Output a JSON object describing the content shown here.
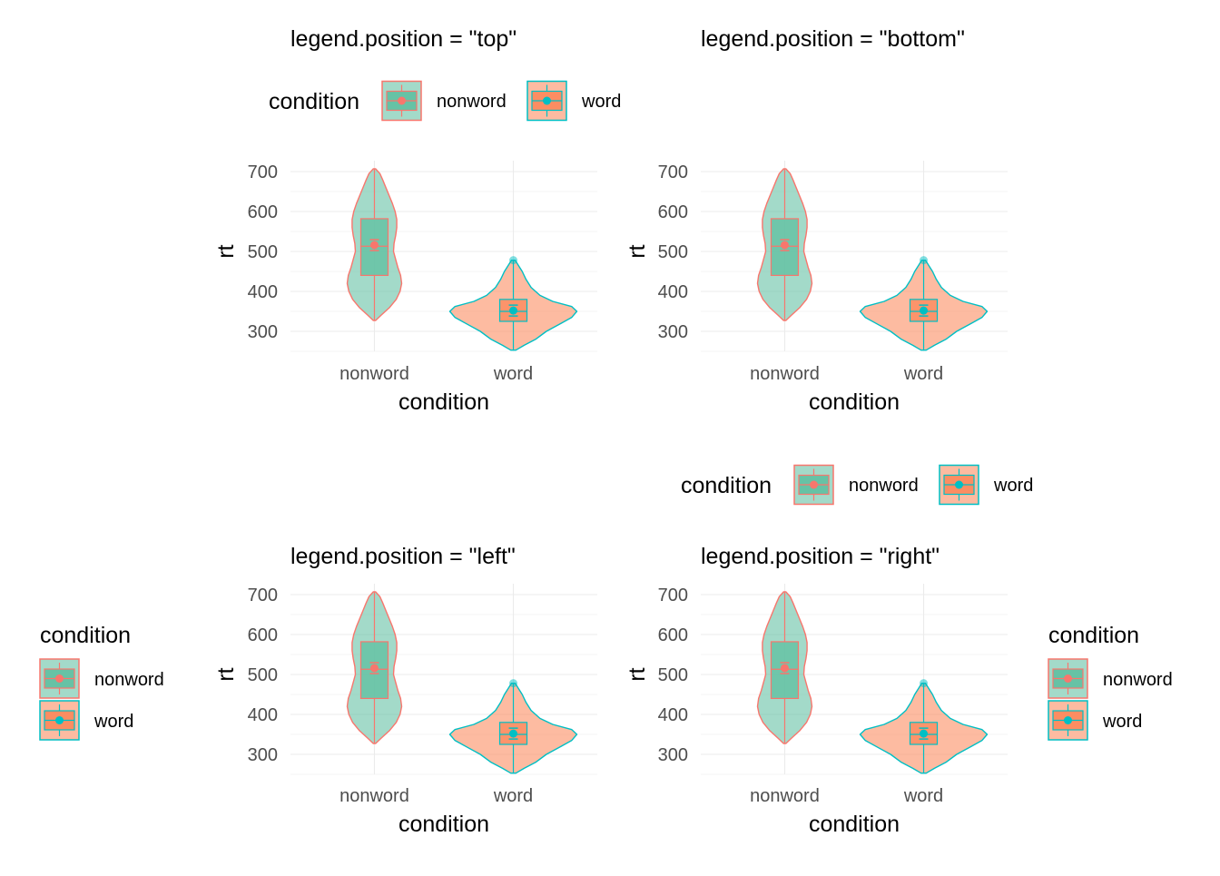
{
  "colors": {
    "nonword_line": "#F8766D",
    "word_line": "#00BFC4",
    "nonword_fill": "#66C2A5",
    "word_fill": "#FC8D62",
    "grid": "#EBEBEB",
    "tick_text": "#4D4D4D",
    "text": "#000000"
  },
  "legend": {
    "title": "condition",
    "items": [
      "nonword",
      "word"
    ]
  },
  "chart_data": [
    {
      "type": "violin",
      "title": "legend.position = \"top\"",
      "legend_position": "top",
      "xlabel": "condition",
      "ylabel": "rt",
      "categories": [
        "nonword",
        "word"
      ],
      "yticks": [
        300,
        400,
        500,
        600,
        700
      ],
      "ylim": [
        245,
        720
      ],
      "grid": true,
      "series": [
        {
          "category": "nonword",
          "min": 327,
          "q1": 440,
          "median": 513,
          "q3": 582,
          "max": 707,
          "mean": 516
        },
        {
          "category": "word",
          "min": 253,
          "q1": 325,
          "median": 350,
          "q3": 380,
          "max": 478,
          "mean": 352
        }
      ]
    },
    {
      "type": "violin",
      "title": "legend.position = \"bottom\"",
      "legend_position": "bottom",
      "xlabel": "condition",
      "ylabel": "rt",
      "categories": [
        "nonword",
        "word"
      ],
      "yticks": [
        300,
        400,
        500,
        600,
        700
      ],
      "ylim": [
        245,
        720
      ],
      "grid": true,
      "series": [
        {
          "category": "nonword",
          "min": 327,
          "q1": 440,
          "median": 513,
          "q3": 582,
          "max": 707,
          "mean": 516
        },
        {
          "category": "word",
          "min": 253,
          "q1": 325,
          "median": 350,
          "q3": 380,
          "max": 478,
          "mean": 352
        }
      ]
    },
    {
      "type": "violin",
      "title": "legend.position = \"left\"",
      "legend_position": "left",
      "xlabel": "condition",
      "ylabel": "rt",
      "categories": [
        "nonword",
        "word"
      ],
      "yticks": [
        300,
        400,
        500,
        600,
        700
      ],
      "ylim": [
        245,
        720
      ],
      "grid": true,
      "series": [
        {
          "category": "nonword",
          "min": 327,
          "q1": 440,
          "median": 513,
          "q3": 582,
          "max": 707,
          "mean": 516
        },
        {
          "category": "word",
          "min": 253,
          "q1": 325,
          "median": 350,
          "q3": 380,
          "max": 478,
          "mean": 352
        }
      ]
    },
    {
      "type": "violin",
      "title": "legend.position = \"right\"",
      "legend_position": "right",
      "xlabel": "condition",
      "ylabel": "rt",
      "categories": [
        "nonword",
        "word"
      ],
      "yticks": [
        300,
        400,
        500,
        600,
        700
      ],
      "ylim": [
        245,
        720
      ],
      "grid": true,
      "series": [
        {
          "category": "nonword",
          "min": 327,
          "q1": 440,
          "median": 513,
          "q3": 582,
          "max": 707,
          "mean": 516
        },
        {
          "category": "word",
          "min": 253,
          "q1": 325,
          "median": 350,
          "q3": 380,
          "max": 478,
          "mean": 352
        }
      ]
    }
  ]
}
